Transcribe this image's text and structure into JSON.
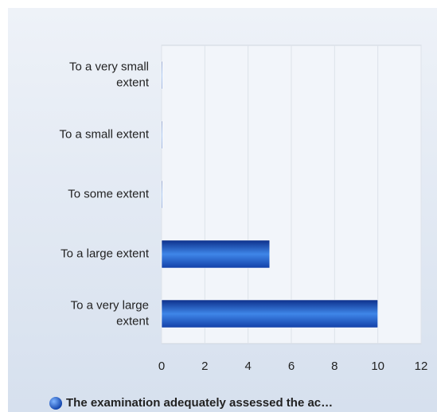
{
  "chart_data": {
    "type": "bar",
    "orientation": "horizontal",
    "categories": [
      "To a very small extent",
      "To a small extent",
      "To some extent",
      "To a large extent",
      "To a very large extent"
    ],
    "series": [
      {
        "name": "The examination adequately assessed the ac…",
        "color": "#1f5bc4",
        "values": [
          0,
          0,
          0,
          5,
          10
        ]
      }
    ],
    "xlim": [
      0,
      12
    ],
    "xticks": [
      0,
      2,
      4,
      6,
      8,
      10,
      12
    ],
    "grid": true,
    "legend": "bottom"
  }
}
